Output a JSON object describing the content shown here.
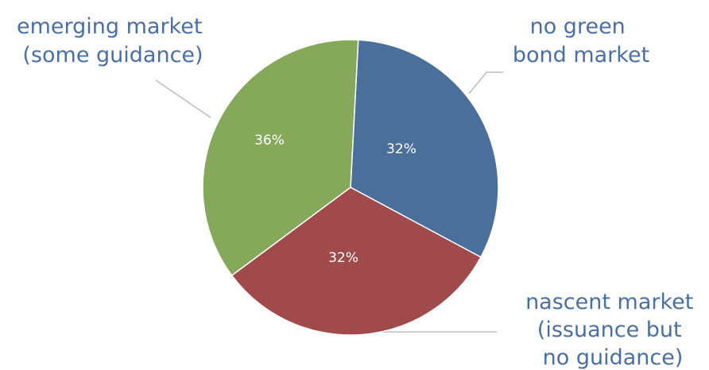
{
  "chart_data": {
    "type": "pie",
    "title": "",
    "label_color": "#4a6fa5",
    "leader_color": "#bfbfbf",
    "slices": [
      {
        "label_lines": [
          "no green",
          "bond market"
        ],
        "value": 32,
        "display": "32%",
        "color": "#4a6f9b"
      },
      {
        "label_lines": [
          "nascent market",
          "(issuance but",
          "no guidance)"
        ],
        "value": 32,
        "display": "32%",
        "color": "#a04a4b"
      },
      {
        "label_lines": [
          "emerging market",
          "(some guidance)"
        ],
        "value": 36,
        "display": "36%",
        "color": "#86a85a"
      }
    ]
  }
}
